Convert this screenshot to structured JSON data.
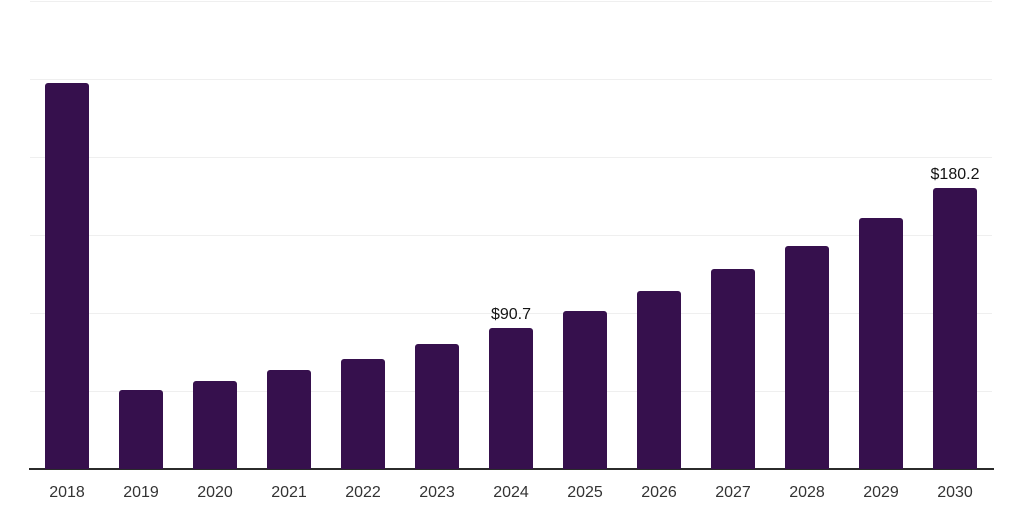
{
  "chart_data": {
    "type": "bar",
    "title": "",
    "xlabel": "",
    "ylabel": "",
    "categories": [
      "2018",
      "2019",
      "2020",
      "2021",
      "2022",
      "2023",
      "2024",
      "2025",
      "2026",
      "2027",
      "2028",
      "2029",
      "2030"
    ],
    "values": [
      247.7,
      50.8,
      56.6,
      63.7,
      70.8,
      80.4,
      90.7,
      101.0,
      113.9,
      128.0,
      142.8,
      160.8,
      180.2
    ],
    "point_labels": {
      "2024": "$90.7",
      "2030": "$180.2"
    },
    "ylim": [
      0,
      300
    ],
    "ytick_step": 50,
    "grid": "horizontal",
    "legend_position": "none",
    "colors": {
      "bar": "#36104d",
      "axis_line": "#2b2b2b",
      "tick_label": "#333333",
      "data_label": "#141414",
      "gridline": "#efefef",
      "background": "#ffffff"
    }
  }
}
